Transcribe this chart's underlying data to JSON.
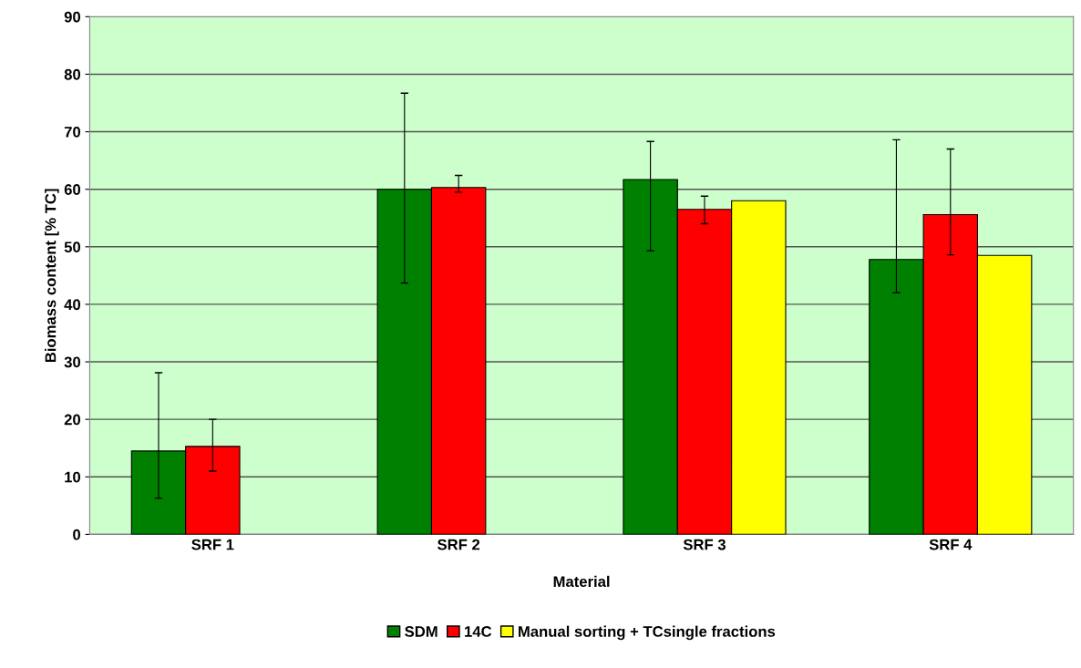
{
  "chart_data": {
    "type": "bar",
    "xlabel": "Material",
    "ylabel": "Biomass content [% TC]",
    "categories": [
      "SRF 1",
      "SRF 2",
      "SRF 3",
      "SRF 4"
    ],
    "series": [
      {
        "name": "SDM",
        "color": "#008000",
        "values": [
          14.5,
          60.0,
          61.7,
          47.8
        ],
        "errors": [
          [
            6.3,
            28.1
          ],
          [
            43.7,
            76.7
          ],
          [
            49.3,
            68.3
          ],
          [
            42.0,
            68.6
          ]
        ]
      },
      {
        "name": "14C",
        "color": "#ff0000",
        "values": [
          15.3,
          60.3,
          56.5,
          55.6
        ],
        "errors": [
          [
            11.0,
            20.0
          ],
          [
            59.5,
            62.4
          ],
          [
            54.0,
            58.8
          ],
          [
            48.6,
            67.0
          ]
        ]
      },
      {
        "name": "Manual sorting + TCsingle fractions",
        "color": "#ffff00",
        "values": [
          null,
          null,
          58.0,
          48.5
        ],
        "errors": [
          null,
          null,
          null,
          null
        ]
      }
    ],
    "ylim": [
      0,
      90
    ],
    "yticks": [
      0,
      10,
      20,
      30,
      40,
      50,
      60,
      70,
      80,
      90
    ],
    "grid": "y",
    "legend": "bottom"
  }
}
